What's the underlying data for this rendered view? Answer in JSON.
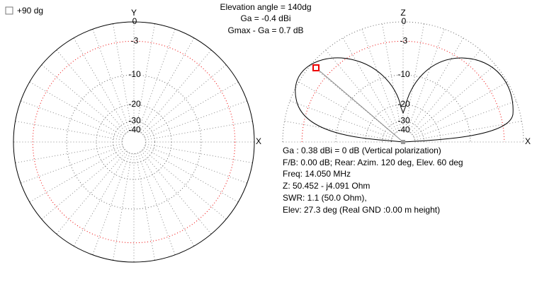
{
  "checkbox": {
    "label": "+90 dg"
  },
  "header": [
    "Elevation angle = 140dg",
    "Ga = -0.4 dBi",
    "Gmax - Ga = 0.7 dB"
  ],
  "azimuth_plot": {
    "axis_labels": [
      "Y",
      "X"
    ],
    "rings": [
      0,
      -3,
      -10,
      -20,
      -30,
      -40
    ]
  },
  "elevation_plot": {
    "axis_labels": [
      "Z",
      "X"
    ],
    "rings": [
      0,
      -3,
      -10,
      -20,
      -30,
      -40
    ]
  },
  "info": [
    "Ga : 0.38 dBi = 0 dB  (Vertical polarization)",
    "F/B: 0.00 dB; Rear: Azim. 120 deg,  Elev. 60 deg",
    "Freq: 14.050 MHz",
    "Z: 50.452 - j4.091 Ohm",
    "SWR: 1.1 (50.0 Ohm),",
    "Elev: 27.3 deg (Real GND  :0.00 m height)"
  ]
}
